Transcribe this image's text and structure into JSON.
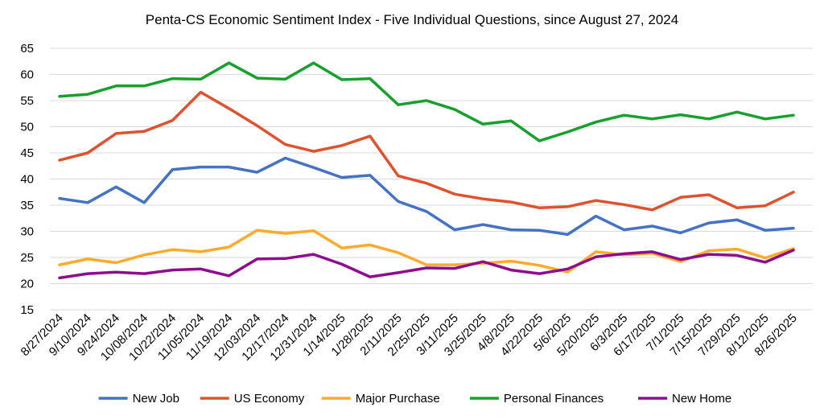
{
  "chart_data": {
    "type": "line",
    "title": "Penta-CS Economic Sentiment Index - Five Individual Questions, since August 27, 2024",
    "xlabel": "",
    "ylabel": "",
    "ylim": [
      15,
      65
    ],
    "yticks": [
      "15",
      "20",
      "25",
      "30",
      "35",
      "40",
      "45",
      "50",
      "55",
      "60",
      "65"
    ],
    "grid": true,
    "legend_position": "bottom",
    "categories": [
      "8/27/2024",
      "9/10/2024",
      "9/24/2024",
      "10/08/2024",
      "10/22/2024",
      "11/05/2024",
      "11/19/2024",
      "12/03/2024",
      "12/17/2024",
      "12/31/2024",
      "1/14/2025",
      "1/28/2025",
      "2/11/2025",
      "2/25/2025",
      "3/11/2025",
      "3/25/2025",
      "4/8/2025",
      "4/22/2025",
      "5/6/2025",
      "5/20/2025",
      "6/3/2025",
      "6/17/2025",
      "7/1/2025",
      "7/15/2025",
      "7/29/2025",
      "8/12/2025",
      "8/26/2025"
    ],
    "series": [
      {
        "name": "New Job",
        "color": "#4472C4",
        "values": [
          36.3,
          35.5,
          38.5,
          35.5,
          41.8,
          42.3,
          42.3,
          41.3,
          44.0,
          42.2,
          40.3,
          40.7,
          35.7,
          33.8,
          30.3,
          31.3,
          30.3,
          30.2,
          29.4,
          32.9,
          30.3,
          31.0,
          29.7,
          31.6,
          32.2,
          30.2,
          30.6
        ]
      },
      {
        "name": "US Economy",
        "color": "#E0522E",
        "values": [
          43.6,
          45.0,
          48.7,
          49.1,
          51.2,
          56.6,
          53.5,
          50.2,
          46.6,
          45.3,
          46.4,
          48.2,
          40.6,
          39.2,
          37.1,
          36.2,
          35.6,
          34.5,
          34.7,
          35.9,
          35.1,
          34.1,
          36.5,
          37.0,
          34.5,
          34.9,
          37.5
        ]
      },
      {
        "name": "Major Purchase",
        "color": "#FFAA2B",
        "values": [
          23.6,
          24.7,
          24.0,
          25.5,
          26.5,
          26.1,
          27.0,
          30.2,
          29.6,
          30.1,
          26.8,
          27.4,
          25.9,
          23.6,
          23.6,
          23.9,
          24.3,
          23.5,
          22.2,
          26.1,
          25.5,
          25.8,
          24.2,
          26.3,
          26.6,
          24.9,
          26.7
        ]
      },
      {
        "name": "Personal Finances",
        "color": "#16A02C",
        "values": [
          55.8,
          56.2,
          57.8,
          57.8,
          59.2,
          59.1,
          62.2,
          59.3,
          59.1,
          62.2,
          59.0,
          59.2,
          54.2,
          55.0,
          53.3,
          50.5,
          51.1,
          47.3,
          49.0,
          50.9,
          52.2,
          51.5,
          52.3,
          51.5,
          52.8,
          51.5,
          52.2
        ]
      },
      {
        "name": "New Home",
        "color": "#8E0D8E",
        "values": [
          21.1,
          21.9,
          22.2,
          21.9,
          22.6,
          22.8,
          21.5,
          24.7,
          24.8,
          25.6,
          23.7,
          21.3,
          22.1,
          23.0,
          22.9,
          24.2,
          22.6,
          21.9,
          22.8,
          25.1,
          25.7,
          26.1,
          24.6,
          25.6,
          25.4,
          24.1,
          26.4
        ]
      }
    ]
  }
}
